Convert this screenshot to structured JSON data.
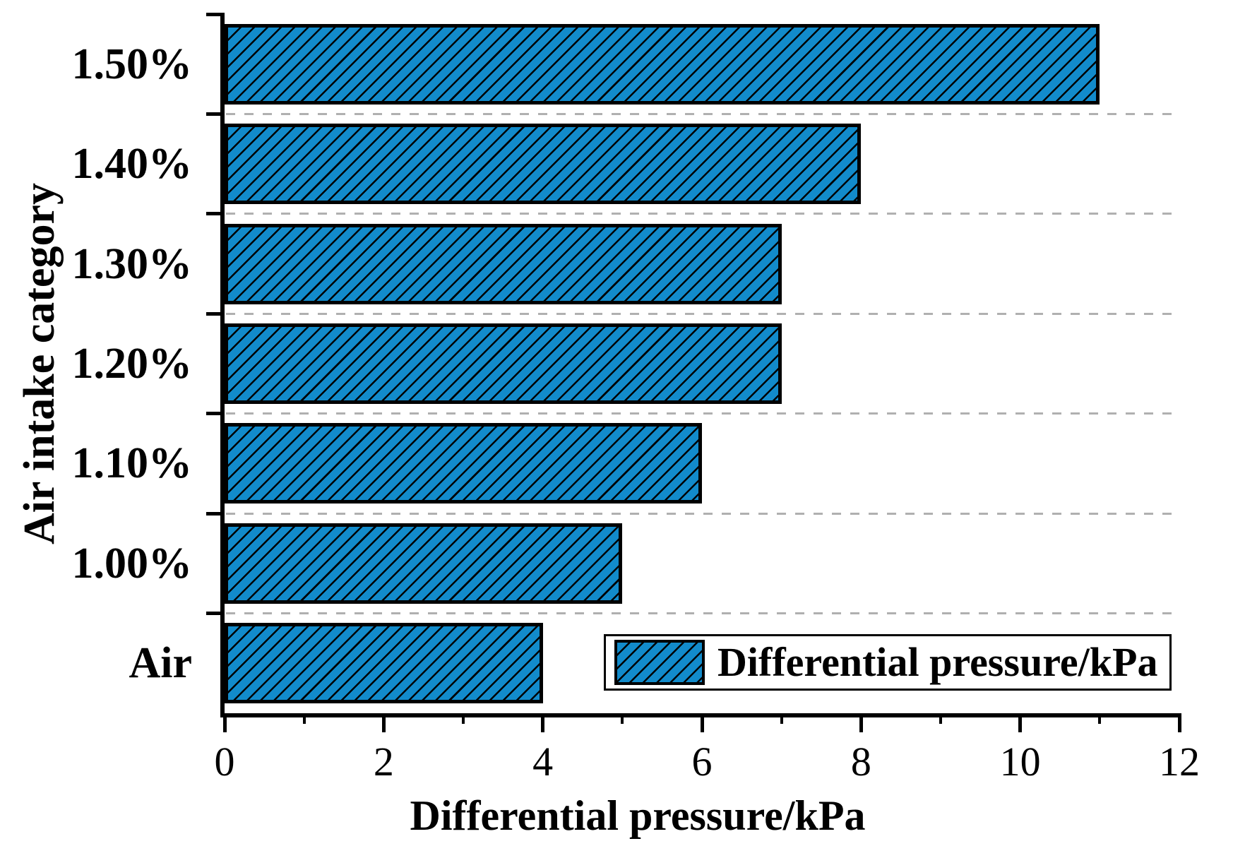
{
  "chart_data": {
    "type": "bar",
    "orientation": "horizontal",
    "categories": [
      "1.50%",
      "1.40%",
      "1.30%",
      "1.20%",
      "1.10%",
      "1.00%",
      "Air"
    ],
    "values": [
      11,
      8,
      7,
      7,
      6,
      5,
      4
    ],
    "series": [
      {
        "name": "Differential pressure/kPa",
        "values": [
          11,
          8,
          7,
          7,
          6,
          5,
          4
        ]
      }
    ],
    "xlabel": "Differential pressure/kPa",
    "ylabel": "Air intake category",
    "xlim": [
      0,
      12
    ],
    "x_major_ticks": [
      "0",
      "2",
      "4",
      "6",
      "8",
      "10",
      "12"
    ],
    "x_minor_ticks": [
      1,
      3,
      5,
      7,
      9,
      11
    ],
    "legend": {
      "label": "Differential pressure/kPa",
      "position": "inside-bottom-right"
    },
    "grid": {
      "horizontal_dashed_between_categories": true,
      "vertical": false
    },
    "hatch_style": "forward-diagonal-lines",
    "colors": {
      "bar_fill": "#128BCB",
      "hatch_lines": "#000000",
      "bar_border": "#000000",
      "axis": "#000000",
      "gridline": "#B0B0B0",
      "text": "#000000",
      "background": "#FFFFFF"
    }
  }
}
